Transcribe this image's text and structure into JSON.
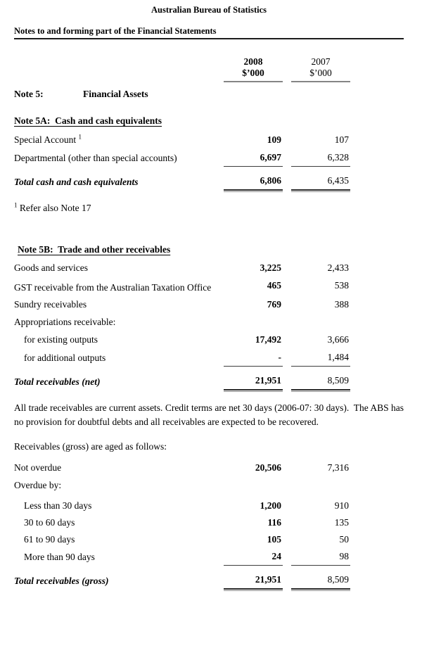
{
  "header": {
    "org": "Australian Bureau of Statistics",
    "title": "Notes to and forming part of the Financial Statements"
  },
  "table_head": {
    "col2008_year": "2008",
    "col2008_unit": "$’000",
    "col2007_year": "2007",
    "col2007_unit": "$’000"
  },
  "note5": {
    "label": "Note 5:",
    "title": "Financial Assets"
  },
  "note5a": {
    "heading": "Note 5A:  Cash and cash equivalents",
    "rows": [
      {
        "label": "Special Account",
        "sup": "1",
        "y2008": "109",
        "y2007": "107"
      },
      {
        "label": "Departmental (other than special accounts)",
        "y2008": "6,697",
        "y2007": "6,328"
      }
    ],
    "total": {
      "label": "Total cash and cash equivalents",
      "y2008": "6,806",
      "y2007": "6,435"
    },
    "footnote_sup": "1",
    "footnote_text": "Refer also Note 17"
  },
  "note5b": {
    "heading": "Note 5B:  Trade and other receivables",
    "rows": [
      {
        "label": "Goods and services",
        "y2008": "3,225",
        "y2007": "2,433"
      },
      {
        "label": "GST receivable from the Australian Taxation Office",
        "y2008": "465",
        "y2007": "538"
      },
      {
        "label": "Sundry receivables",
        "y2008": "769",
        "y2007": "388"
      },
      {
        "label": "Appropriations receivable:"
      },
      {
        "label": "for existing outputs",
        "y2008": "17,492",
        "y2007": "3,666"
      },
      {
        "label": "for additional outputs",
        "y2008": "-",
        "y2007": "1,484"
      }
    ],
    "total": {
      "label": "Total receivables (net)",
      "y2008": "21,951",
      "y2007": "8,509"
    },
    "paragraph": "All trade receivables are current assets. Credit terms are net 30 days (2006-07: 30 days).  The ABS has no provision for doubtful debts and all receivables are expected to be recovered.",
    "aging_intro": "Receivables (gross) are aged as follows:",
    "aging_rows": [
      {
        "label": "Not overdue",
        "y2008": "20,506",
        "y2007": "7,316"
      },
      {
        "label": "Overdue by:"
      },
      {
        "label": "Less than 30 days",
        "y2008": "1,200",
        "y2007": "910"
      },
      {
        "label": "30 to 60 days",
        "y2008": "116",
        "y2007": "135"
      },
      {
        "label": "61 to 90 days",
        "y2008": "105",
        "y2007": "50"
      },
      {
        "label": "More than 90 days",
        "y2008": "24",
        "y2007": "98"
      }
    ],
    "aging_total": {
      "label": "Total receivables (gross)",
      "y2008": "21,951",
      "y2007": "8,509"
    }
  }
}
